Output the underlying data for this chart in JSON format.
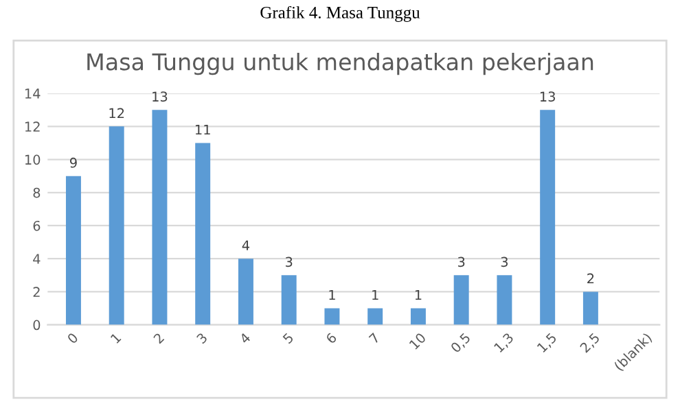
{
  "chart_data": {
    "type": "bar",
    "title": "Masa Tunggu untuk mendapatkan pekerjaan",
    "annotations": [
      "Grafik 4. Masa Tunggu"
    ],
    "categories": [
      "0",
      "1",
      "2",
      "3",
      "4",
      "5",
      "6",
      "7",
      "10",
      "0,5",
      "1,3",
      "1,5",
      "2,5",
      "(blank)"
    ],
    "values": [
      9,
      12,
      13,
      11,
      4,
      3,
      1,
      1,
      1,
      3,
      3,
      13,
      2,
      null
    ],
    "color": "#5b9bd5",
    "ylim": [
      0,
      14
    ],
    "yticks": [
      0,
      2,
      4,
      6,
      8,
      10,
      12,
      14
    ],
    "grid": "y",
    "data_labels": true,
    "legend": false
  }
}
